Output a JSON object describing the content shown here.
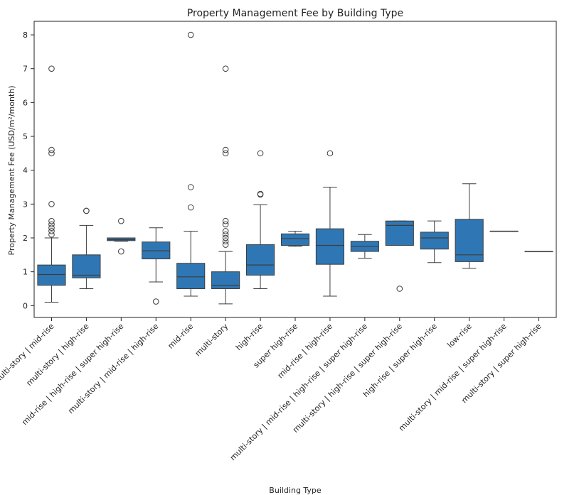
{
  "chart_data": {
    "type": "box",
    "title": "Property Management Fee by Building Type",
    "xlabel": "Building Type",
    "ylabel": "Property Management Fee (USD/m²/month)",
    "ylim": [
      -0.35,
      8.4
    ],
    "yticks": [
      "0",
      "1",
      "2",
      "3",
      "4",
      "5",
      "6",
      "7",
      "8"
    ],
    "grid": false,
    "color": "#2f77b4",
    "categories": [
      "multi-story | mid-rise",
      "multi-story | high-rise",
      "mid-rise | high-rise | super high-rise",
      "multi-story | mid-rise | high-rise",
      "mid-rise",
      "multi-story",
      "high-rise",
      "super high-rise",
      "mid-rise | high-rise",
      "multi-story | mid-rise | high-rise | super high-rise",
      "multi-story | high-rise | super high-rise",
      "high-rise | super high-rise",
      "low-rise",
      "multi-story | mid-rise | super high-rise",
      "multi-story | super high-rise"
    ],
    "boxes": [
      {
        "whislo": 0.1,
        "q1": 0.6,
        "med": 0.92,
        "q3": 1.2,
        "whishi": 2.0,
        "fliers": [
          2.1,
          2.2,
          2.3,
          2.4,
          2.5,
          3.0,
          4.5,
          4.6,
          7.0
        ]
      },
      {
        "whislo": 0.5,
        "q1": 0.82,
        "med": 0.9,
        "q3": 1.5,
        "whishi": 2.37,
        "fliers": [
          2.8,
          2.8
        ]
      },
      {
        "whislo": 1.9,
        "q1": 1.92,
        "med": 1.95,
        "q3": 2.0,
        "whishi": 2.0,
        "fliers": [
          1.6,
          2.5
        ]
      },
      {
        "whislo": 0.7,
        "q1": 1.38,
        "med": 1.62,
        "q3": 1.88,
        "whishi": 2.3,
        "fliers": [
          0.12
        ]
      },
      {
        "whislo": 0.28,
        "q1": 0.5,
        "med": 0.85,
        "q3": 1.25,
        "whishi": 2.2,
        "fliers": [
          2.9,
          3.5,
          8.0
        ]
      },
      {
        "whislo": 0.05,
        "q1": 0.5,
        "med": 0.6,
        "q3": 1.0,
        "whishi": 1.6,
        "fliers": [
          1.8,
          1.9,
          2.0,
          2.1,
          2.2,
          2.4,
          2.5,
          4.5,
          4.6,
          7.0
        ]
      },
      {
        "whislo": 0.5,
        "q1": 0.9,
        "med": 1.2,
        "q3": 1.8,
        "whishi": 2.98,
        "fliers": [
          3.28,
          3.3,
          4.5
        ]
      },
      {
        "whislo": 1.75,
        "q1": 1.78,
        "med": 1.98,
        "q3": 2.12,
        "whishi": 2.2,
        "fliers": []
      },
      {
        "whislo": 0.28,
        "q1": 1.22,
        "med": 1.78,
        "q3": 2.27,
        "whishi": 3.5,
        "fliers": [
          4.5
        ]
      },
      {
        "whislo": 1.4,
        "q1": 1.6,
        "med": 1.75,
        "q3": 1.9,
        "whishi": 2.1,
        "fliers": []
      },
      {
        "whislo": 1.78,
        "q1": 1.78,
        "med": 2.37,
        "q3": 2.5,
        "whishi": 2.5,
        "fliers": [
          0.5
        ]
      },
      {
        "whislo": 1.27,
        "q1": 1.67,
        "med": 2.0,
        "q3": 2.17,
        "whishi": 2.5,
        "fliers": []
      },
      {
        "whislo": 1.1,
        "q1": 1.3,
        "med": 1.5,
        "q3": 2.55,
        "whishi": 3.6,
        "fliers": []
      },
      {
        "whislo": 2.2,
        "q1": 2.2,
        "med": 2.2,
        "q3": 2.2,
        "whishi": 2.2,
        "fliers": []
      },
      {
        "whislo": 1.6,
        "q1": 1.6,
        "med": 1.6,
        "q3": 1.6,
        "whishi": 1.6,
        "fliers": []
      }
    ]
  }
}
